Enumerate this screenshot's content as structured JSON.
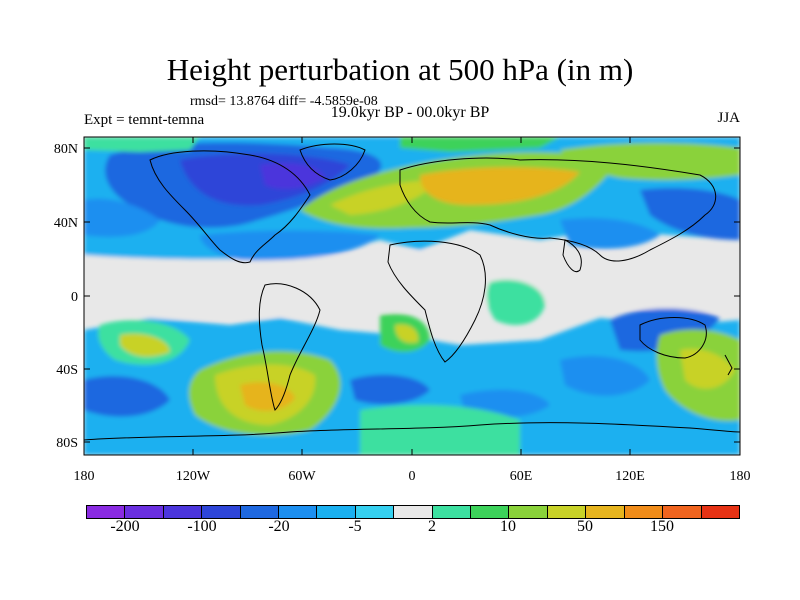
{
  "title": "Height perturbation at 500 hPa (in m)",
  "stats": "rmsd= 13.8764 diff= -4.5859e-08",
  "experiment": "Expt = temnt-temna",
  "period": "19.0kyr BP - 00.0kyr BP",
  "season": "JJA",
  "lat_ticks": [
    "80N",
    "40N",
    "0",
    "40S",
    "80S"
  ],
  "lon_ticks": [
    "180",
    "120W",
    "60W",
    "0",
    "60E",
    "120E",
    "180"
  ],
  "colorbar": {
    "colors": [
      "#8a2be2",
      "#6a2fe0",
      "#4b35dc",
      "#2d45d8",
      "#1e68e0",
      "#1c8ff0",
      "#1ab0f0",
      "#35d0f0",
      "#e8e8e8",
      "#3ce0a0",
      "#3cd25a",
      "#8ad23a",
      "#c8d228",
      "#e6b41e",
      "#f08c19",
      "#f0641e",
      "#e63214"
    ],
    "labels": [
      "-200",
      "-100",
      "-20",
      "-5",
      "2",
      "10",
      "50",
      "150"
    ]
  },
  "colors": {
    "background": "#e8e8e8",
    "coast": "#000000",
    "ocean_neutral": "#e8e8e8"
  }
}
